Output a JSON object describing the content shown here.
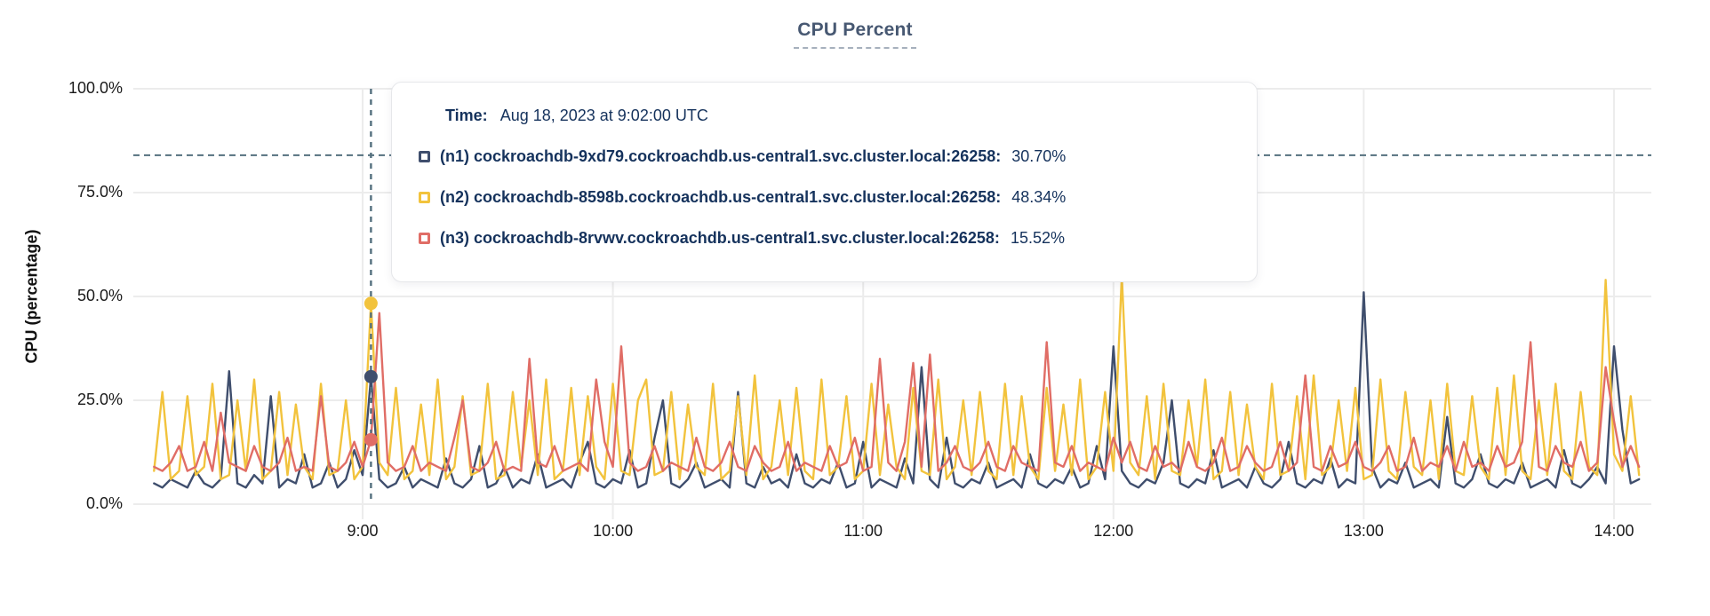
{
  "title": "CPU Percent",
  "tooltip": {
    "time_label": "Time:",
    "time_value": "Aug 18, 2023 at 9:02:00 UTC",
    "rows": [
      {
        "label": "(n1) cockroachdb-9xd79.cockroachdb.us-central1.svc.cluster.local:26258:",
        "value": "30.70%",
        "color": "#3f4e6d"
      },
      {
        "label": "(n2) cockroachdb-8598b.cockroachdb.us-central1.svc.cluster.local:26258:",
        "value": "48.34%",
        "color": "#f2c33d"
      },
      {
        "label": "(n3) cockroachdb-8rvwv.cockroachdb.us-central1.svc.cluster.local:26258:",
        "value": "15.52%",
        "color": "#e06d66"
      }
    ]
  },
  "chart_data": {
    "type": "line",
    "title": "CPU Percent",
    "ylabel": "CPU (percentage)",
    "ylim": [
      0,
      100
    ],
    "grid": true,
    "yticks": [
      {
        "label": "0.0%",
        "value": 0
      },
      {
        "label": "25.0%",
        "value": 25
      },
      {
        "label": "50.0%",
        "value": 50
      },
      {
        "label": "75.0%",
        "value": 75
      },
      {
        "label": "100.0%",
        "value": 100
      }
    ],
    "xticks": [
      {
        "label": "9:00",
        "minutes": 540
      },
      {
        "label": "10:00",
        "minutes": 600
      },
      {
        "label": "11:00",
        "minutes": 660
      },
      {
        "label": "12:00",
        "minutes": 720
      },
      {
        "label": "13:00",
        "minutes": 780
      },
      {
        "label": "14:00",
        "minutes": 840
      }
    ],
    "threshold_percent": 84,
    "hover": {
      "time_minutes": 542,
      "time_text": "Aug 18, 2023 at 9:02:00 UTC",
      "values": [
        30.7,
        48.34,
        15.52
      ]
    },
    "x_start_minutes": 490,
    "x_step_minutes": 2,
    "line_color": "#54707e",
    "grid_color": "#ececec",
    "series": [
      {
        "name": "(n1) cockroachdb-9xd79.cockroachdb.us-central1.svc.cluster.local:26258",
        "color": "#3f4e6d",
        "values": [
          5,
          4,
          6,
          5,
          4,
          8,
          5,
          4,
          6,
          32,
          5,
          4,
          7,
          5,
          26,
          4,
          6,
          5,
          12,
          4,
          5,
          10,
          4,
          6,
          13,
          7,
          30.7,
          6,
          4,
          5,
          9,
          4,
          6,
          5,
          4,
          11,
          5,
          4,
          6,
          14,
          4,
          5,
          9,
          4,
          6,
          5,
          12,
          4,
          5,
          6,
          4,
          10,
          15,
          5,
          4,
          6,
          5,
          13,
          4,
          5,
          16,
          25,
          5,
          4,
          6,
          10,
          4,
          5,
          6,
          4,
          27,
          5,
          4,
          9,
          5,
          6,
          4,
          12,
          5,
          4,
          6,
          5,
          10,
          4,
          5,
          15,
          4,
          6,
          5,
          4,
          11,
          5,
          33,
          6,
          4,
          16,
          5,
          4,
          6,
          5,
          10,
          4,
          5,
          6,
          4,
          12,
          5,
          4,
          6,
          5,
          9,
          4,
          5,
          14,
          6,
          38,
          8,
          5,
          4,
          6,
          5,
          10,
          25,
          5,
          4,
          6,
          5,
          13,
          4,
          5,
          6,
          4,
          9,
          5,
          4,
          6,
          15,
          5,
          4,
          6,
          5,
          11,
          4,
          6,
          5,
          51,
          9,
          4,
          6,
          5,
          10,
          4,
          5,
          6,
          4,
          21,
          5,
          4,
          6,
          12,
          5,
          4,
          6,
          5,
          10,
          4,
          5,
          6,
          4,
          13,
          5,
          4,
          6,
          9,
          5,
          38,
          18,
          5,
          6
        ]
      },
      {
        "name": "(n2) cockroachdb-8598b.cockroachdb.us-central1.svc.cluster.local:26258",
        "color": "#f2c33d",
        "values": [
          8,
          27,
          6,
          8,
          26,
          7,
          9,
          29,
          6,
          7,
          25,
          8,
          30,
          6,
          8,
          27,
          7,
          24,
          9,
          6,
          29,
          7,
          8,
          25,
          6,
          9,
          48.3,
          10,
          7,
          28,
          6,
          8,
          24,
          7,
          30,
          6,
          9,
          26,
          7,
          8,
          29,
          6,
          7,
          27,
          9,
          25,
          7,
          30,
          6,
          8,
          28,
          7,
          26,
          9,
          6,
          29,
          8,
          7,
          25,
          30,
          7,
          8,
          27,
          6,
          24,
          9,
          7,
          29,
          6,
          8,
          26,
          7,
          31,
          6,
          9,
          25,
          7,
          28,
          8,
          6,
          30,
          7,
          9,
          26,
          6,
          8,
          29,
          7,
          24,
          9,
          6,
          28,
          8,
          7,
          30,
          6,
          9,
          25,
          7,
          27,
          8,
          6,
          29,
          7,
          26,
          9,
          6,
          28,
          8,
          24,
          7,
          30,
          6,
          9,
          27,
          8,
          55,
          10,
          7,
          26,
          6,
          29,
          8,
          7,
          25,
          9,
          30,
          6,
          8,
          27,
          7,
          24,
          9,
          6,
          29,
          7,
          8,
          26,
          6,
          31,
          7,
          9,
          25,
          8,
          28,
          6,
          7,
          30,
          8,
          6,
          27,
          9,
          7,
          25,
          6,
          29,
          8,
          7,
          26,
          9,
          6,
          28,
          7,
          31,
          8,
          6,
          25,
          7,
          29,
          8,
          6,
          27,
          9,
          7,
          54,
          12,
          8,
          26,
          7
        ]
      },
      {
        "name": "(n3) cockroachdb-8rvwv.cockroachdb.us-central1.svc.cluster.local:26258",
        "color": "#e06d66",
        "values": [
          9,
          8,
          10,
          14,
          8,
          9,
          15,
          8,
          22,
          10,
          9,
          8,
          14,
          9,
          8,
          10,
          16,
          8,
          9,
          8,
          26,
          9,
          8,
          10,
          15,
          9,
          15.5,
          46,
          10,
          8,
          9,
          14,
          8,
          10,
          9,
          8,
          16,
          25,
          9,
          8,
          10,
          15,
          8,
          9,
          8,
          35,
          10,
          9,
          14,
          8,
          9,
          10,
          8,
          30,
          15,
          9,
          38,
          10,
          8,
          9,
          14,
          8,
          10,
          9,
          8,
          16,
          9,
          8,
          10,
          15,
          9,
          8,
          14,
          10,
          8,
          9,
          15,
          8,
          10,
          9,
          8,
          14,
          9,
          10,
          16,
          8,
          9,
          35,
          10,
          8,
          15,
          34,
          9,
          36,
          8,
          10,
          14,
          9,
          8,
          10,
          15,
          9,
          8,
          14,
          10,
          9,
          8,
          39,
          10,
          9,
          14,
          8,
          10,
          9,
          8,
          16,
          10,
          15,
          9,
          8,
          14,
          9,
          10,
          8,
          15,
          9,
          8,
          10,
          16,
          8,
          9,
          14,
          10,
          8,
          9,
          15,
          8,
          10,
          31,
          9,
          8,
          14,
          9,
          10,
          15,
          9,
          8,
          10,
          14,
          8,
          9,
          16,
          8,
          10,
          9,
          14,
          8,
          15,
          9,
          10,
          8,
          14,
          9,
          10,
          15,
          39,
          9,
          8,
          14,
          10,
          9,
          15,
          8,
          10,
          33,
          20,
          9,
          14,
          9
        ]
      }
    ]
  }
}
